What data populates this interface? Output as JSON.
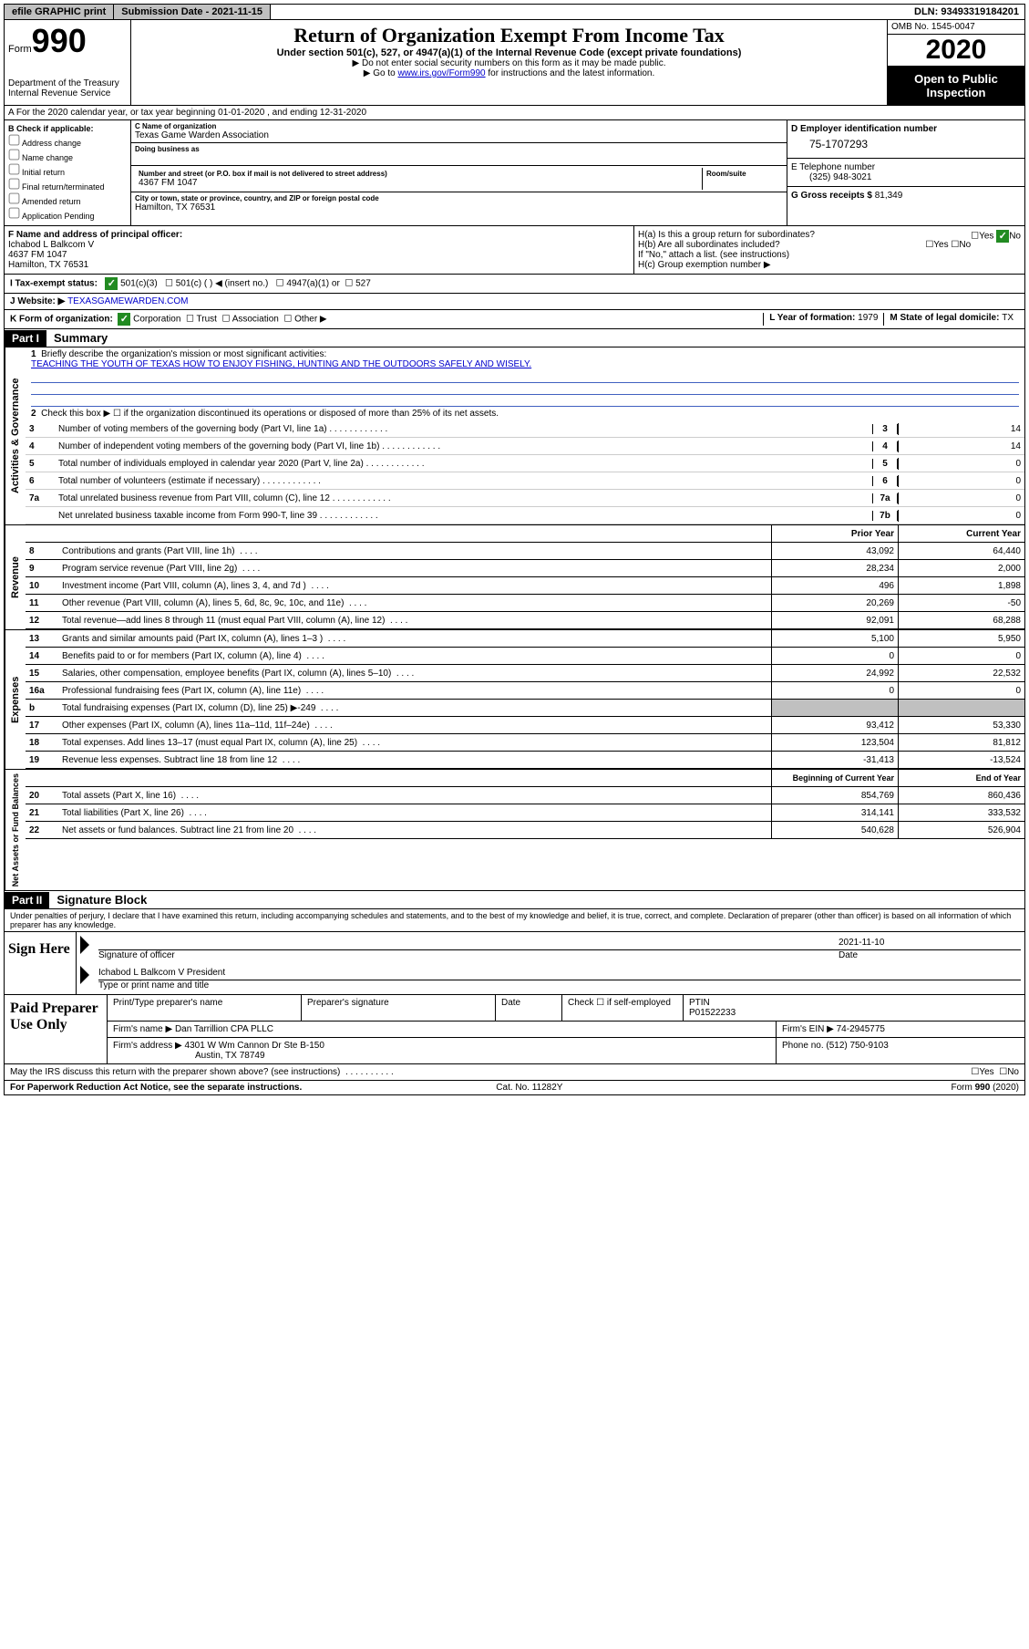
{
  "topbar": {
    "efile": "efile GRAPHIC print",
    "subdate_label": "Submission Date - ",
    "subdate": "2021-11-15",
    "dln_label": "DLN: ",
    "dln": "93493319184201"
  },
  "header": {
    "form_label": "Form",
    "form_num": "990",
    "dept1": "Department of the Treasury",
    "dept2": "Internal Revenue Service",
    "title": "Return of Organization Exempt From Income Tax",
    "sub": "Under section 501(c), 527, or 4947(a)(1) of the Internal Revenue Code (except private foundations)",
    "note1": "▶ Do not enter social security numbers on this form as it may be made public.",
    "note2_pre": "▶ Go to ",
    "note2_link": "www.irs.gov/Form990",
    "note2_post": " for instructions and the latest information.",
    "omb": "OMB No. 1545-0047",
    "year": "2020",
    "inspect1": "Open to Public",
    "inspect2": "Inspection"
  },
  "row_a": "A   For the 2020 calendar year, or tax year beginning 01-01-2020   , and ending 12-31-2020",
  "col_b": {
    "title": "B Check if applicable:",
    "opts": [
      "Address change",
      "Name change",
      "Initial return",
      "Final return/terminated",
      "Amended return",
      "Application Pending"
    ]
  },
  "col_c": {
    "name_label": "C Name of organization",
    "name": "Texas Game Warden Association",
    "dba_label": "Doing business as",
    "addr_label": "Number and street (or P.O. box if mail is not delivered to street address)",
    "room_label": "Room/suite",
    "addr": "4367 FM 1047",
    "city_label": "City or town, state or province, country, and ZIP or foreign postal code",
    "city": "Hamilton, TX  76531"
  },
  "col_d": {
    "ein_label": "D Employer identification number",
    "ein": "75-1707293",
    "tel_label": "E Telephone number",
    "tel": "(325) 948-3021",
    "gross_label": "G Gross receipts $ ",
    "gross": "81,349"
  },
  "row_f": {
    "f_label": "F  Name and address of principal officer:",
    "f_name": "Ichabod L Balkcom V",
    "f_addr1": "4637 FM 1047",
    "f_addr2": "Hamilton, TX  76531",
    "ha": "H(a)  Is this a group return for subordinates?",
    "hb": "H(b)  Are all subordinates included?",
    "hb_note": "If \"No,\" attach a list. (see instructions)",
    "hc": "H(c)  Group exemption number ▶"
  },
  "row_i": {
    "label": "I  Tax-exempt status:",
    "o1": "501(c)(3)",
    "o2": "501(c) (  ) ◀ (insert no.)",
    "o3": "4947(a)(1) or",
    "o4": "527"
  },
  "row_j": {
    "label": "J  Website: ▶ ",
    "val": "TEXASGAMEWARDEN.COM"
  },
  "row_k": {
    "k": "K Form of organization:",
    "opts": [
      "Corporation",
      "Trust",
      "Association",
      "Other ▶"
    ],
    "l_label": "L Year of formation: ",
    "l_val": "1979",
    "m_label": "M State of legal domicile: ",
    "m_val": "TX"
  },
  "part1": {
    "header": "Part I",
    "title": "Summary",
    "l1": "Briefly describe the organization's mission or most significant activities:",
    "l1_text": "TEACHING THE YOUTH OF TEXAS HOW TO ENJOY FISHING, HUNTING AND THE OUTDOORS SAFELY AND WISELY.",
    "l2": "Check this box ▶ ☐  if the organization discontinued its operations or disposed of more than 25% of its net assets.",
    "lines_gov": [
      {
        "n": "3",
        "d": "Number of voting members of the governing body (Part VI, line 1a)",
        "box": "3",
        "v": "14"
      },
      {
        "n": "4",
        "d": "Number of independent voting members of the governing body (Part VI, line 1b)",
        "box": "4",
        "v": "14"
      },
      {
        "n": "5",
        "d": "Total number of individuals employed in calendar year 2020 (Part V, line 2a)",
        "box": "5",
        "v": "0"
      },
      {
        "n": "6",
        "d": "Total number of volunteers (estimate if necessary)",
        "box": "6",
        "v": "0"
      },
      {
        "n": "7a",
        "d": "Total unrelated business revenue from Part VIII, column (C), line 12",
        "box": "7a",
        "v": "0"
      },
      {
        "n": "",
        "d": "Net unrelated business taxable income from Form 990-T, line 39",
        "box": "7b",
        "v": "0"
      }
    ],
    "col_hdr1": "Prior Year",
    "col_hdr2": "Current Year",
    "lines_rev": [
      {
        "n": "8",
        "d": "Contributions and grants (Part VIII, line 1h)",
        "v1": "43,092",
        "v2": "64,440"
      },
      {
        "n": "9",
        "d": "Program service revenue (Part VIII, line 2g)",
        "v1": "28,234",
        "v2": "2,000"
      },
      {
        "n": "10",
        "d": "Investment income (Part VIII, column (A), lines 3, 4, and 7d )",
        "v1": "496",
        "v2": "1,898"
      },
      {
        "n": "11",
        "d": "Other revenue (Part VIII, column (A), lines 5, 6d, 8c, 9c, 10c, and 11e)",
        "v1": "20,269",
        "v2": "-50"
      },
      {
        "n": "12",
        "d": "Total revenue—add lines 8 through 11 (must equal Part VIII, column (A), line 12)",
        "v1": "92,091",
        "v2": "68,288"
      }
    ],
    "lines_exp": [
      {
        "n": "13",
        "d": "Grants and similar amounts paid (Part IX, column (A), lines 1–3 )",
        "v1": "5,100",
        "v2": "5,950"
      },
      {
        "n": "14",
        "d": "Benefits paid to or for members (Part IX, column (A), line 4)",
        "v1": "0",
        "v2": "0"
      },
      {
        "n": "15",
        "d": "Salaries, other compensation, employee benefits (Part IX, column (A), lines 5–10)",
        "v1": "24,992",
        "v2": "22,532"
      },
      {
        "n": "16a",
        "d": "Professional fundraising fees (Part IX, column (A), line 11e)",
        "v1": "0",
        "v2": "0"
      },
      {
        "n": "b",
        "d": "Total fundraising expenses (Part IX, column (D), line 25) ▶-249",
        "v1": "",
        "v2": "",
        "shaded": true
      },
      {
        "n": "17",
        "d": "Other expenses (Part IX, column (A), lines 11a–11d, 11f–24e)",
        "v1": "93,412",
        "v2": "53,330"
      },
      {
        "n": "18",
        "d": "Total expenses. Add lines 13–17 (must equal Part IX, column (A), line 25)",
        "v1": "123,504",
        "v2": "81,812"
      },
      {
        "n": "19",
        "d": "Revenue less expenses. Subtract line 18 from line 12",
        "v1": "-31,413",
        "v2": "-13,524"
      }
    ],
    "col_hdr3": "Beginning of Current Year",
    "col_hdr4": "End of Year",
    "lines_net": [
      {
        "n": "20",
        "d": "Total assets (Part X, line 16)",
        "v1": "854,769",
        "v2": "860,436"
      },
      {
        "n": "21",
        "d": "Total liabilities (Part X, line 26)",
        "v1": "314,141",
        "v2": "333,532"
      },
      {
        "n": "22",
        "d": "Net assets or fund balances. Subtract line 21 from line 20",
        "v1": "540,628",
        "v2": "526,904"
      }
    ],
    "vtab_gov": "Activities & Governance",
    "vtab_rev": "Revenue",
    "vtab_exp": "Expenses",
    "vtab_net": "Net Assets or Fund Balances"
  },
  "part2": {
    "header": "Part II",
    "title": "Signature Block",
    "penalties": "Under penalties of perjury, I declare that I have examined this return, including accompanying schedules and statements, and to the best of my knowledge and belief, it is true, correct, and complete. Declaration of preparer (other than officer) is based on all information of which preparer has any knowledge.",
    "sign_here": "Sign Here",
    "sig_officer": "Signature of officer",
    "date_label": "Date",
    "date": "2021-11-10",
    "typed": "Ichabod L Balkcom V President",
    "typed_label": "Type or print name and title",
    "paid": "Paid Preparer Use Only",
    "prep_name_label": "Print/Type preparer's name",
    "prep_sig_label": "Preparer's signature",
    "prep_date_label": "Date",
    "self_emp": "Check ☐ if self-employed",
    "ptin_label": "PTIN",
    "ptin": "P01522233",
    "firm_name_label": "Firm's name    ▶ ",
    "firm_name": "Dan Tarrillion CPA PLLC",
    "firm_ein_label": "Firm's EIN ▶ ",
    "firm_ein": "74-2945775",
    "firm_addr_label": "Firm's address ▶ ",
    "firm_addr1": "4301 W Wm Cannon Dr Ste B-150",
    "firm_addr2": "Austin, TX  78749",
    "phone_label": "Phone no. ",
    "phone": "(512) 750-9103",
    "may_irs": "May the IRS discuss this return with the preparer shown above? (see instructions)"
  },
  "footer": {
    "left": "For Paperwork Reduction Act Notice, see the separate instructions.",
    "mid": "Cat. No. 11282Y",
    "right": "Form 990 (2020)"
  }
}
